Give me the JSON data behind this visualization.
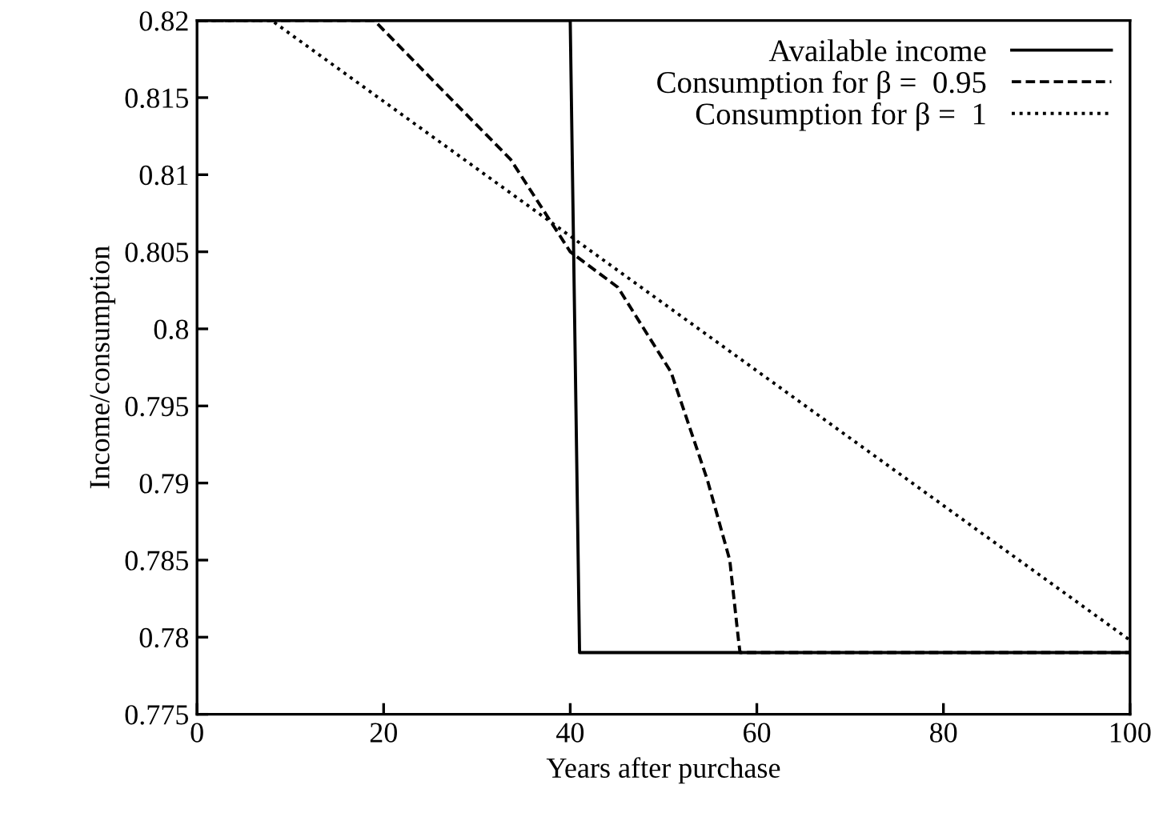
{
  "chart_data": {
    "type": "line",
    "xlabel": "Years after purchase",
    "ylabel": "Income/consumption",
    "xlim": [
      0,
      100
    ],
    "xticks": [
      0,
      20,
      40,
      60,
      80,
      100
    ],
    "ylim": [
      0.775,
      0.82
    ],
    "yticks": [
      0.775,
      0.78,
      0.785,
      0.79,
      0.795,
      0.8,
      0.805,
      0.81,
      0.815,
      0.82
    ],
    "grid": false,
    "legend": "top right",
    "marker": "none",
    "series": [
      {
        "name": "Available income",
        "color": "#000000",
        "line_style": "solid",
        "x": [
          0,
          40,
          41,
          100
        ],
        "values": [
          0.82,
          0.82,
          0.779,
          0.779
        ]
      },
      {
        "name": "Consumption for β =  0.95",
        "color": "#000000",
        "line_style": "dashed",
        "x": [
          0,
          19,
          27.9,
          33.6,
          40,
          45.1,
          50.8,
          54.7,
          57.1,
          58,
          58.2,
          100
        ],
        "values": [
          0.82,
          0.82,
          0.8145,
          0.811,
          0.805,
          0.8027,
          0.7972,
          0.7902,
          0.785,
          0.78,
          0.779,
          0.779
        ]
      },
      {
        "name": "Consumption for β =  1",
        "color": "#000000",
        "line_style": "dotted",
        "x": [
          0,
          8,
          100
        ],
        "values": [
          0.82,
          0.82,
          0.7798
        ]
      }
    ]
  }
}
